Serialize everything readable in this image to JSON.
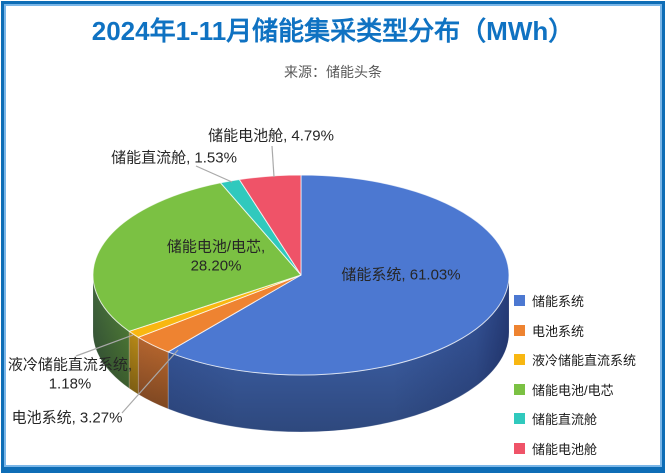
{
  "header": {
    "title": "2024年1-11月储能集采类型分布（MWh）",
    "source": "来源：储能头条"
  },
  "chart_data": {
    "type": "pie",
    "style": "3d",
    "title": "2024年1-11月储能集采类型分布（MWh）",
    "subtitle": "来源：储能头条",
    "unit": "MWh",
    "legend_position": "right",
    "start_angle_deg": 0,
    "direction": "clockwise",
    "slices": [
      {
        "name": "储能系统",
        "value_pct": 61.03,
        "label": "储能系统, 61.03%",
        "color": "#4C78D1"
      },
      {
        "name": "电池系统",
        "value_pct": 3.27,
        "label": "电池系统, 3.27%",
        "color": "#EE8331"
      },
      {
        "name": "液冷储能直流系统",
        "value_pct": 1.18,
        "label": "液冷储能直流系统, 1.18%",
        "color": "#F8B711"
      },
      {
        "name": "储能电池/电芯",
        "value_pct": 28.2,
        "label": "储能电池/电芯, 28.20%",
        "color": "#7BC143"
      },
      {
        "name": "储能直流舱",
        "value_pct": 1.53,
        "label": "储能直流舱, 1.53%",
        "color": "#30C9BD"
      },
      {
        "name": "储能电池舱",
        "value_pct": 4.79,
        "label": "储能电池舱, 4.79%",
        "color": "#EF5368"
      }
    ]
  },
  "theme": {
    "title_color": "#0F72C2",
    "subtitle_color": "#595959",
    "frame_outer": "#0E6DB6",
    "frame_inner": "#7AB6E8",
    "label_color": "#262626",
    "leader_line_color": "#A9A9A9"
  }
}
